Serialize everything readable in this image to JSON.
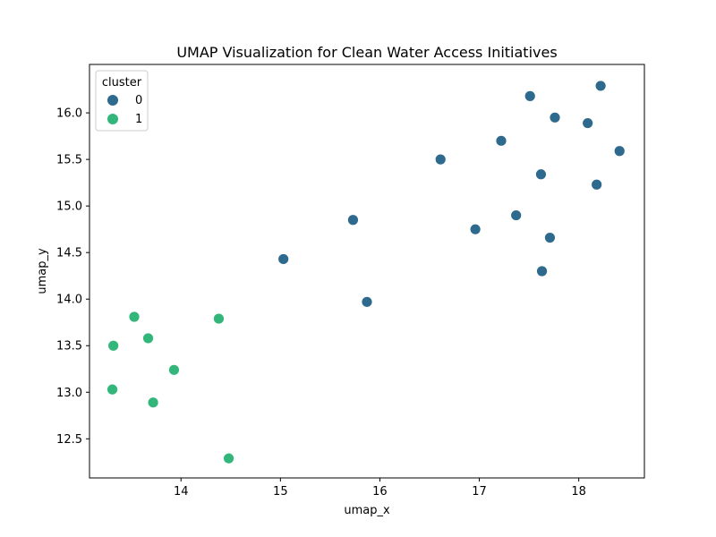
{
  "chart_data": {
    "type": "scatter",
    "title": "UMAP Visualization for Clean Water Access Initiatives",
    "xlabel": "umap_x",
    "ylabel": "umap_y",
    "xlim": [
      13.08,
      18.66
    ],
    "ylim": [
      12.08,
      16.52
    ],
    "xticks": [
      "14",
      "15",
      "16",
      "17",
      "18"
    ],
    "yticks": [
      "12.5",
      "13.0",
      "13.5",
      "14.0",
      "14.5",
      "15.0",
      "15.5",
      "16.0"
    ],
    "legend": {
      "title": "cluster",
      "position": "top-left"
    },
    "grid": false,
    "series": [
      {
        "name": "0",
        "color": "#2e6a8e",
        "points": [
          [
            17.51,
            16.18
          ],
          [
            18.22,
            16.29
          ],
          [
            17.76,
            15.95
          ],
          [
            18.09,
            15.89
          ],
          [
            17.22,
            15.7
          ],
          [
            16.61,
            15.5
          ],
          [
            18.41,
            15.59
          ],
          [
            17.62,
            15.34
          ],
          [
            18.18,
            15.23
          ],
          [
            15.73,
            14.85
          ],
          [
            17.37,
            14.9
          ],
          [
            16.96,
            14.75
          ],
          [
            17.71,
            14.66
          ],
          [
            15.03,
            14.43
          ],
          [
            17.63,
            14.3
          ],
          [
            15.87,
            13.97
          ]
        ]
      },
      {
        "name": "1",
        "color": "#32b67a",
        "points": [
          [
            13.53,
            13.81
          ],
          [
            14.38,
            13.79
          ],
          [
            13.67,
            13.58
          ],
          [
            13.32,
            13.5
          ],
          [
            13.93,
            13.24
          ],
          [
            13.31,
            13.03
          ],
          [
            13.72,
            12.89
          ],
          [
            14.48,
            12.29
          ]
        ]
      }
    ]
  }
}
